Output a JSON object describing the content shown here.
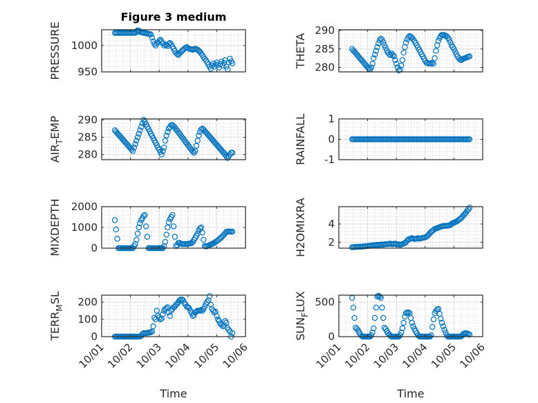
{
  "figure": {
    "title": "Figure 3 medium",
    "xlabel": "Time"
  },
  "chart_data": {
    "type": "scatter",
    "marker": "open-circle",
    "color": "#0072BD",
    "x_unit": "days since 10/01 00:00",
    "x_start_day": 0.46,
    "x_step_hours": 1,
    "xlim": [
      0,
      5
    ],
    "xticks": [
      0,
      1,
      2,
      3,
      4,
      5
    ],
    "xtick_labels": [
      "10/01",
      "10/02",
      "10/03",
      "10/04",
      "10/05",
      "10/06"
    ],
    "grid": "on (major + minor)",
    "subplots": [
      {
        "ylabel": "PRESSURE",
        "ylim": [
          950,
          1030
        ],
        "yticks": [
          950,
          1000
        ],
        "ytick_labels": [
          "950",
          "1000"
        ],
        "values": [
          1024,
          1024,
          1024,
          1024,
          1024,
          1024,
          1024,
          1024,
          1024,
          1024,
          1024,
          1024,
          1024,
          1024,
          1024,
          1024,
          1024,
          1024,
          1027,
          1029,
          1028,
          1026,
          1025,
          1025,
          1024,
          1024,
          1023,
          1023,
          1022,
          1022,
          1021,
          1015,
          1008,
          1003,
          1000,
          1004,
          1006,
          1009,
          1011,
          1008,
          1004,
          1000,
          1002,
          1001,
          999,
          1003,
          1005,
          1002,
          998,
          994,
          990,
          986,
          984,
          982,
          985,
          988,
          990,
          992,
          994,
          996,
          997,
          995,
          994,
          993,
          993,
          992,
          993,
          994,
          993,
          992,
          990,
          988,
          985,
          982,
          978,
          975,
          972,
          968,
          964,
          960,
          956,
          962,
          966,
          960,
          964,
          968,
          963,
          958,
          965,
          970,
          962,
          967,
          972,
          960,
          955,
          968,
          975,
          970,
          966
        ]
      },
      {
        "ylabel": "THETA",
        "ylim": [
          278.8,
          290.2
        ],
        "yticks": [
          280,
          285,
          290
        ],
        "ytick_labels": [
          "280",
          "285",
          "290"
        ],
        "values": [
          285,
          284.6,
          284.3,
          283.9,
          283.5,
          283.1,
          282.7,
          282.3,
          282,
          281.6,
          281.2,
          280.8,
          280.4,
          280,
          279.7,
          279.5,
          280,
          281,
          282.5,
          283.5,
          284.5,
          285.5,
          286.5,
          287.3,
          287.8,
          287.5,
          286.8,
          286,
          285.3,
          284.6,
          284,
          283.6,
          283.3,
          283.8,
          283.4,
          283,
          282,
          281,
          280,
          279.2,
          279.5,
          280.5,
          282,
          284,
          285.5,
          286.7,
          287.6,
          288.2,
          288.5,
          288.3,
          288,
          287.6,
          287.1,
          286.6,
          286,
          285.4,
          284.8,
          284.2,
          283.6,
          283,
          282.4,
          281.8,
          281.3,
          281.2,
          281,
          281.1,
          281,
          281.3,
          281,
          282.5,
          284.5,
          286,
          287.2,
          288,
          288.5,
          288.8,
          288.8,
          288.7,
          288.6,
          288.4,
          288,
          287.5,
          286.8,
          286,
          285.5,
          285,
          284.3,
          283.6,
          283,
          282.5,
          282.1,
          282,
          282.2,
          282.4,
          282.5,
          282.6,
          282.8,
          282.9,
          283
        ]
      },
      {
        "ylabel": "AIR_TEMP",
        "ylim": [
          278.5,
          290.3
        ],
        "yticks": [
          280,
          285,
          290
        ],
        "ytick_labels": [
          "280",
          "285",
          "290"
        ],
        "values": [
          287,
          286.6,
          286.2,
          285.8,
          285.4,
          285,
          284.6,
          284.2,
          283.8,
          283.4,
          283,
          282.6,
          282.2,
          281.8,
          281.4,
          281,
          282,
          283,
          284,
          285,
          286,
          287,
          288,
          289,
          290,
          289.4,
          288.7,
          288,
          287.4,
          286.7,
          286,
          285.4,
          284.7,
          284,
          283.4,
          282.7,
          282,
          281.4,
          280.7,
          280,
          281,
          282,
          284,
          285.5,
          286.5,
          287.5,
          288,
          288.5,
          288.5,
          288.2,
          287.8,
          287.3,
          286.9,
          286.4,
          286,
          285.5,
          285,
          284.6,
          284.1,
          283.6,
          283.2,
          282.7,
          282.3,
          281.8,
          281.3,
          280.9,
          280.5,
          281,
          282.5,
          284,
          285.5,
          286.5,
          287.2,
          287.5,
          287.2,
          286.8,
          286.4,
          286,
          285.6,
          285.2,
          284.8,
          284.4,
          284,
          283.6,
          283.2,
          282.8,
          282.4,
          282,
          281.6,
          281.2,
          280.8,
          280.4,
          280,
          279.5,
          279,
          279.5,
          280,
          280.5,
          280.5
        ]
      },
      {
        "ylabel": "RAINFALL",
        "ylim": [
          -1,
          1
        ],
        "yticks": [
          -1,
          0,
          1
        ],
        "ytick_labels": [
          "-1",
          "0",
          "1"
        ],
        "values": [
          0,
          0,
          0,
          0,
          0,
          0,
          0,
          0,
          0,
          0,
          0,
          0,
          0,
          0,
          0,
          0,
          0,
          0,
          0,
          0,
          0,
          0,
          0,
          0,
          0,
          0,
          0,
          0,
          0,
          0,
          0,
          0,
          0,
          0,
          0,
          0,
          0,
          0,
          0,
          0,
          0,
          0,
          0,
          0,
          0,
          0,
          0,
          0,
          0,
          0,
          0,
          0,
          0,
          0,
          0,
          0,
          0,
          0,
          0,
          0,
          0,
          0,
          0,
          0,
          0,
          0,
          0,
          0,
          0,
          0,
          0,
          0,
          0,
          0,
          0,
          0,
          0,
          0,
          0,
          0,
          0,
          0,
          0,
          0,
          0,
          0,
          0,
          0,
          0,
          0,
          0,
          0,
          0,
          0,
          0,
          0,
          0,
          0,
          0
        ]
      },
      {
        "ylabel": "MIXDEPTH",
        "ylim": [
          0,
          2000
        ],
        "yticks": [
          0,
          1000,
          2000
        ],
        "ytick_labels": [
          "0",
          "1000",
          "2000"
        ],
        "values": [
          1350,
          900,
          450,
          0,
          0,
          0,
          0,
          0,
          0,
          0,
          0,
          0,
          0,
          0,
          0,
          0,
          100,
          200,
          400,
          700,
          1000,
          1200,
          1350,
          1450,
          1550,
          1600,
          1050,
          550,
          0,
          0,
          0,
          0,
          0,
          0,
          0,
          0,
          0,
          0,
          0,
          0,
          0,
          100,
          300,
          650,
          1000,
          1250,
          1400,
          1500,
          1600,
          1050,
          550,
          100,
          150,
          250,
          250,
          220,
          200,
          200,
          200,
          200,
          200,
          210,
          220,
          230,
          250,
          300,
          400,
          500,
          600,
          700,
          850,
          950,
          1000,
          750,
          400,
          100,
          80,
          100,
          120,
          150,
          180,
          200,
          230,
          260,
          300,
          340,
          380,
          430,
          480,
          530,
          590,
          650,
          720,
          780,
          800,
          810,
          800,
          790,
          800
        ]
      },
      {
        "ylabel": "H2OMIXRA",
        "ylim": [
          1.35,
          5.9
        ],
        "yticks": [
          2,
          4
        ],
        "ytick_labels": [
          "2",
          "4"
        ],
        "values": [
          1.45,
          1.46,
          1.47,
          1.48,
          1.5,
          1.5,
          1.51,
          1.5,
          1.52,
          1.53,
          1.55,
          1.56,
          1.58,
          1.58,
          1.6,
          1.62,
          1.63,
          1.65,
          1.66,
          1.68,
          1.7,
          1.72,
          1.7,
          1.72,
          1.73,
          1.75,
          1.74,
          1.76,
          1.78,
          1.8,
          1.78,
          1.82,
          1.85,
          1.8,
          1.78,
          1.82,
          1.85,
          1.8,
          1.78,
          1.75,
          1.72,
          1.75,
          1.8,
          1.85,
          1.9,
          2.0,
          2.2,
          2.3,
          2.35,
          2.4,
          2.45,
          2.4,
          2.35,
          2.38,
          2.4,
          2.45,
          2.4,
          2.42,
          2.45,
          2.48,
          2.5,
          2.55,
          2.6,
          2.7,
          2.85,
          3.0,
          3.15,
          3.25,
          3.35,
          3.45,
          3.5,
          3.55,
          3.6,
          3.65,
          3.7,
          3.75,
          3.78,
          3.8,
          3.8,
          3.8,
          3.82,
          3.85,
          3.9,
          4.0,
          4.1,
          4.15,
          4.2,
          4.25,
          4.35,
          4.45,
          4.55,
          4.65,
          4.8,
          4.95,
          5.1,
          5.25,
          5.45,
          5.6,
          5.8
        ]
      },
      {
        "ylabel": "TERR_MSL",
        "ylim": [
          0,
          240
        ],
        "yticks": [
          0,
          100,
          200
        ],
        "ytick_labels": [
          "0",
          "100",
          "200"
        ],
        "values": [
          0,
          0,
          0,
          0,
          0,
          0,
          0,
          0,
          0,
          0,
          0,
          0,
          0,
          0,
          0,
          0,
          0,
          0,
          0,
          0,
          0,
          0,
          5,
          15,
          20,
          20,
          20,
          22,
          22,
          25,
          25,
          30,
          60,
          110,
          100,
          150,
          120,
          110,
          100,
          105,
          130,
          150,
          160,
          165,
          170,
          140,
          120,
          150,
          160,
          170,
          175,
          185,
          190,
          200,
          210,
          215,
          215,
          210,
          195,
          185,
          175,
          170,
          165,
          150,
          135,
          120,
          125,
          140,
          145,
          150,
          150,
          150,
          155,
          150,
          160,
          175,
          190,
          200,
          210,
          235,
          185,
          160,
          150,
          140,
          145,
          120,
          100,
          90,
          75,
          70,
          60,
          65,
          90,
          80,
          50,
          40,
          30,
          0,
          20
        ]
      },
      {
        "ylabel": "SUN_FLUX",
        "ylim": [
          0,
          600
        ],
        "yticks": [
          0,
          500
        ],
        "ytick_labels": [
          "0",
          "500"
        ],
        "values": [
          560,
          420,
          270,
          130,
          110,
          90,
          60,
          30,
          10,
          0,
          0,
          0,
          0,
          0,
          0,
          0,
          20,
          60,
          120,
          270,
          420,
          580,
          590,
          580,
          560,
          420,
          270,
          130,
          110,
          80,
          50,
          30,
          10,
          0,
          0,
          0,
          0,
          0,
          0,
          0,
          20,
          60,
          120,
          200,
          290,
          340,
          350,
          350,
          340,
          270,
          200,
          150,
          110,
          80,
          50,
          20,
          5,
          0,
          0,
          0,
          0,
          0,
          0,
          0,
          0,
          0,
          20,
          140,
          250,
          340,
          370,
          390,
          400,
          330,
          260,
          200,
          150,
          100,
          60,
          20,
          0,
          0,
          0,
          0,
          0,
          0,
          0,
          0,
          0,
          0,
          0,
          5,
          20,
          40,
          50,
          50,
          45,
          40,
          30
        ]
      }
    ]
  }
}
